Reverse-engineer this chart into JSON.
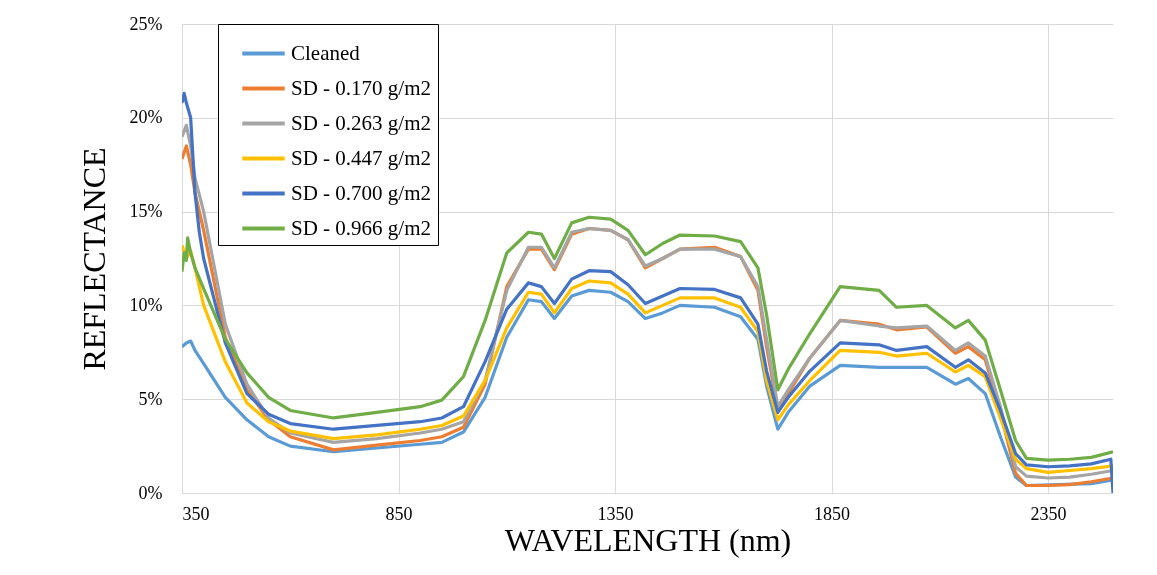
{
  "chart_data": {
    "type": "line",
    "xlabel": "WAVELENGTH (nm)",
    "ylabel": "REFLECTANCE",
    "x": [
      350,
      360,
      370,
      380,
      400,
      450,
      500,
      550,
      600,
      700,
      800,
      900,
      950,
      1000,
      1050,
      1100,
      1150,
      1180,
      1210,
      1250,
      1290,
      1340,
      1380,
      1420,
      1460,
      1500,
      1580,
      1640,
      1680,
      1700,
      1726,
      1750,
      1800,
      1870,
      1960,
      2000,
      2070,
      2136,
      2166,
      2205,
      2240,
      2275,
      2300,
      2350,
      2400,
      2450,
      2500
    ],
    "series": [
      {
        "name": "Cleaned",
        "color": "#5b9bd5",
        "values": [
          7.8,
          8.0,
          8.1,
          7.6,
          6.9,
          5.1,
          3.9,
          3.0,
          2.5,
          2.2,
          2.4,
          2.6,
          2.7,
          3.25,
          5.1,
          8.3,
          10.3,
          10.2,
          9.3,
          10.5,
          10.8,
          10.7,
          10.2,
          9.3,
          9.6,
          10.0,
          9.9,
          9.4,
          8.2,
          5.7,
          3.4,
          4.3,
          5.7,
          6.8,
          6.7,
          6.7,
          6.7,
          5.8,
          6.1,
          5.3,
          3.0,
          0.85,
          0.4,
          null,
          null,
          0.5,
          0.7
        ]
      },
      {
        "name": "SD - 0.170 g/m2",
        "color": "#ed7d31",
        "values": [
          17.8,
          18.5,
          17.5,
          16.0,
          14.0,
          8.3,
          5.5,
          3.9,
          3.0,
          2.3,
          2.55,
          2.8,
          3.0,
          3.5,
          5.8,
          11.0,
          13.0,
          13.0,
          11.9,
          13.8,
          14.1,
          14.0,
          13.5,
          12.0,
          12.5,
          13.0,
          13.1,
          12.6,
          10.8,
          7.8,
          4.4,
          5.3,
          7.2,
          9.2,
          9.0,
          8.7,
          8.85,
          7.45,
          7.8,
          7.1,
          4.3,
          1.05,
          0.4,
          0.4,
          0.45,
          0.6,
          0.8
        ]
      },
      {
        "name": "SD - 0.263 g/m2",
        "color": "#a5a5a5",
        "values": [
          19.0,
          19.6,
          18.5,
          16.8,
          15.0,
          9.0,
          5.8,
          4.0,
          3.2,
          2.7,
          2.9,
          3.2,
          3.4,
          3.8,
          6.0,
          10.8,
          13.1,
          13.1,
          12.0,
          13.9,
          14.1,
          14.0,
          13.5,
          12.1,
          12.5,
          13.0,
          13.0,
          12.6,
          11.0,
          8.2,
          4.6,
          5.5,
          7.2,
          9.2,
          8.9,
          8.8,
          8.9,
          7.6,
          8.0,
          7.3,
          4.6,
          1.4,
          0.9,
          0.8,
          0.85,
          1.0,
          1.2
        ]
      },
      {
        "name": "SD - 0.447 g/m2",
        "color": "#ffc000",
        "values": [
          13.2,
          12.5,
          12.9,
          12.0,
          10.0,
          7.0,
          4.8,
          3.8,
          3.3,
          2.9,
          3.1,
          3.4,
          3.6,
          4.1,
          6.0,
          8.8,
          10.7,
          10.6,
          9.6,
          10.9,
          11.3,
          11.2,
          10.6,
          9.6,
          10.0,
          10.4,
          10.4,
          9.9,
          8.6,
          6.0,
          3.9,
          4.7,
          6.0,
          7.6,
          7.5,
          7.3,
          7.45,
          6.45,
          6.8,
          6.2,
          4.0,
          1.8,
          1.3,
          1.1,
          1.2,
          1.3,
          1.45
        ]
      },
      {
        "name": "SD - 0.700 g/m2",
        "color": "#4472c4",
        "x": [
          350,
          355,
          360,
          370,
          380,
          390,
          400,
          450,
          500,
          550,
          600,
          700,
          800,
          900,
          950,
          1000,
          1050,
          1100,
          1150,
          1180,
          1210,
          1250,
          1290,
          1340,
          1380,
          1420,
          1460,
          1500,
          1580,
          1640,
          1680,
          1700,
          1726,
          1750,
          1800,
          1870,
          1960,
          2000,
          2070,
          2136,
          2166,
          2205,
          2240,
          2275,
          2300,
          2350,
          2400,
          2450,
          2495,
          2500
        ],
        "values": [
          20.8,
          21.3,
          20.8,
          20.0,
          16.0,
          13.9,
          12.5,
          8.0,
          5.3,
          4.2,
          3.7,
          3.4,
          3.6,
          3.8,
          4.0,
          4.6,
          7.0,
          9.8,
          11.2,
          11.0,
          10.1,
          11.4,
          11.85,
          11.8,
          11.1,
          10.1,
          10.5,
          10.9,
          10.85,
          10.4,
          9.0,
          6.5,
          4.3,
          5.1,
          6.5,
          8.0,
          7.9,
          7.6,
          7.8,
          6.7,
          7.1,
          6.4,
          4.4,
          2.1,
          1.5,
          1.4,
          1.45,
          1.55,
          1.8,
          0
        ]
      },
      {
        "name": "SD - 0.966 g/m2",
        "color": "#70ad47",
        "x": [
          350,
          355,
          360,
          363,
          370,
          380,
          400,
          450,
          500,
          550,
          600,
          700,
          800,
          900,
          950,
          1000,
          1050,
          1100,
          1150,
          1180,
          1210,
          1250,
          1290,
          1340,
          1380,
          1420,
          1460,
          1500,
          1580,
          1640,
          1680,
          1700,
          1726,
          1750,
          1800,
          1870,
          1960,
          2000,
          2070,
          2136,
          2166,
          2205,
          2240,
          2275,
          2300,
          2350,
          2400,
          2450,
          2500
        ],
        "values": [
          11.8,
          12.8,
          12.4,
          13.6,
          12.8,
          12.0,
          10.9,
          8.2,
          6.4,
          5.1,
          4.4,
          4.0,
          4.3,
          4.6,
          4.95,
          6.2,
          9.2,
          12.8,
          13.9,
          13.8,
          12.5,
          14.4,
          14.7,
          14.6,
          14.0,
          12.7,
          13.3,
          13.75,
          13.7,
          13.4,
          12.0,
          9.5,
          5.5,
          6.6,
          8.5,
          11.0,
          10.8,
          9.9,
          10.0,
          8.8,
          9.2,
          8.15,
          5.5,
          2.8,
          1.85,
          1.75,
          1.8,
          1.9,
          2.2
        ]
      }
    ],
    "xlim": [
      350,
      2500
    ],
    "xticks": [
      350,
      850,
      1350,
      1850,
      2350
    ],
    "ylim": [
      0,
      25
    ],
    "yticks": [
      {
        "value": 0,
        "label": "0%"
      },
      {
        "value": 5,
        "label": "5%"
      },
      {
        "value": 10,
        "label": "10%"
      },
      {
        "value": 15,
        "label": "15%"
      },
      {
        "value": 20,
        "label": "20%"
      },
      {
        "value": 25,
        "label": "25%"
      }
    ],
    "grid": true,
    "legend": "top left"
  }
}
